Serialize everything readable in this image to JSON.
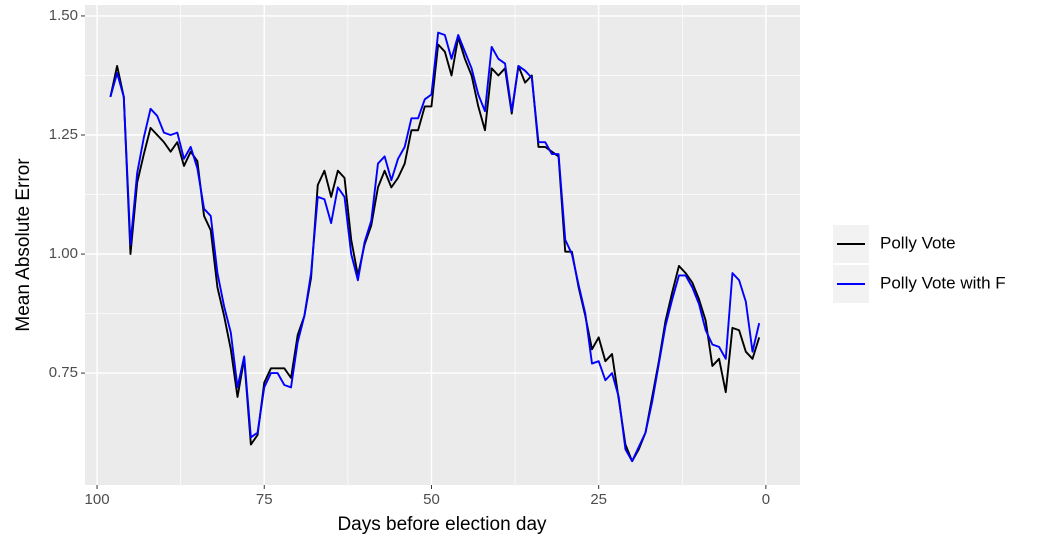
{
  "chart_data": {
    "type": "line",
    "x_label": "Days before election day",
    "y_label": "Mean Absolute Error",
    "x": [
      98,
      97,
      96,
      95,
      94,
      93,
      92,
      91,
      90,
      89,
      88,
      87,
      86,
      85,
      84,
      83,
      82,
      81,
      80,
      79,
      78,
      77,
      76,
      75,
      74,
      73,
      72,
      71,
      70,
      69,
      68,
      67,
      66,
      65,
      64,
      63,
      62,
      61,
      60,
      59,
      58,
      57,
      56,
      55,
      54,
      53,
      52,
      51,
      50,
      49,
      48,
      47,
      46,
      45,
      44,
      43,
      42,
      41,
      40,
      39,
      38,
      37,
      36,
      35,
      34,
      33,
      32,
      31,
      30,
      29,
      28,
      27,
      26,
      25,
      24,
      23,
      22,
      21,
      20,
      19,
      18,
      17,
      16,
      15,
      14,
      13,
      12,
      11,
      10,
      9,
      8,
      7,
      6,
      5,
      4,
      3,
      2,
      1
    ],
    "series": [
      {
        "name": "Polly Vote",
        "color": "#000000",
        "values": [
          1.33,
          1.395,
          1.33,
          1.0,
          1.15,
          1.21,
          1.265,
          1.25,
          1.235,
          1.215,
          1.235,
          1.185,
          1.215,
          1.195,
          1.08,
          1.05,
          0.93,
          0.87,
          0.8,
          0.7,
          0.78,
          0.6,
          0.62,
          0.73,
          0.76,
          0.76,
          0.76,
          0.74,
          0.83,
          0.87,
          0.95,
          1.145,
          1.175,
          1.12,
          1.175,
          1.16,
          1.03,
          0.955,
          1.02,
          1.06,
          1.14,
          1.175,
          1.14,
          1.16,
          1.19,
          1.26,
          1.26,
          1.31,
          1.31,
          1.44,
          1.425,
          1.375,
          1.455,
          1.41,
          1.375,
          1.31,
          1.26,
          1.39,
          1.375,
          1.39,
          1.295,
          1.395,
          1.36,
          1.375,
          1.225,
          1.225,
          1.215,
          1.205,
          1.005,
          1.005,
          0.93,
          0.87,
          0.8,
          0.825,
          0.775,
          0.79,
          0.695,
          0.6,
          0.565,
          0.59,
          0.625,
          0.7,
          0.775,
          0.86,
          0.92,
          0.975,
          0.96,
          0.94,
          0.905,
          0.86,
          0.765,
          0.78,
          0.71,
          0.845,
          0.84,
          0.795,
          0.78,
          0.825
        ]
      },
      {
        "name": "Polly Vote with F",
        "color": "#0000ff",
        "values": [
          1.33,
          1.38,
          1.33,
          1.02,
          1.17,
          1.245,
          1.305,
          1.29,
          1.255,
          1.25,
          1.255,
          1.2,
          1.225,
          1.18,
          1.095,
          1.08,
          0.96,
          0.89,
          0.835,
          0.72,
          0.785,
          0.615,
          0.625,
          0.72,
          0.75,
          0.75,
          0.725,
          0.72,
          0.815,
          0.87,
          0.96,
          1.12,
          1.115,
          1.065,
          1.14,
          1.12,
          1.0,
          0.945,
          1.025,
          1.07,
          1.19,
          1.205,
          1.155,
          1.2,
          1.225,
          1.285,
          1.285,
          1.325,
          1.335,
          1.465,
          1.46,
          1.41,
          1.46,
          1.425,
          1.39,
          1.335,
          1.3,
          1.435,
          1.41,
          1.4,
          1.3,
          1.395,
          1.385,
          1.37,
          1.235,
          1.235,
          1.21,
          1.21,
          1.03,
          1.0,
          0.935,
          0.875,
          0.77,
          0.775,
          0.735,
          0.75,
          0.7,
          0.59,
          0.565,
          0.595,
          0.625,
          0.69,
          0.77,
          0.85,
          0.905,
          0.955,
          0.955,
          0.93,
          0.895,
          0.84,
          0.81,
          0.805,
          0.78,
          0.96,
          0.945,
          0.9,
          0.795,
          0.855
        ]
      }
    ],
    "xlim": [
      101.8,
      -5.1
    ],
    "xticks": [
      100,
      75,
      50,
      25,
      0
    ],
    "ylim": [
      0.515,
      1.523
    ],
    "yticks": [
      0.75,
      {
        "value": 1.0,
        "label": "1.00"
      },
      1.25,
      {
        "value": 1.5,
        "label": "1.50"
      }
    ],
    "grid": true,
    "legend": "right"
  }
}
